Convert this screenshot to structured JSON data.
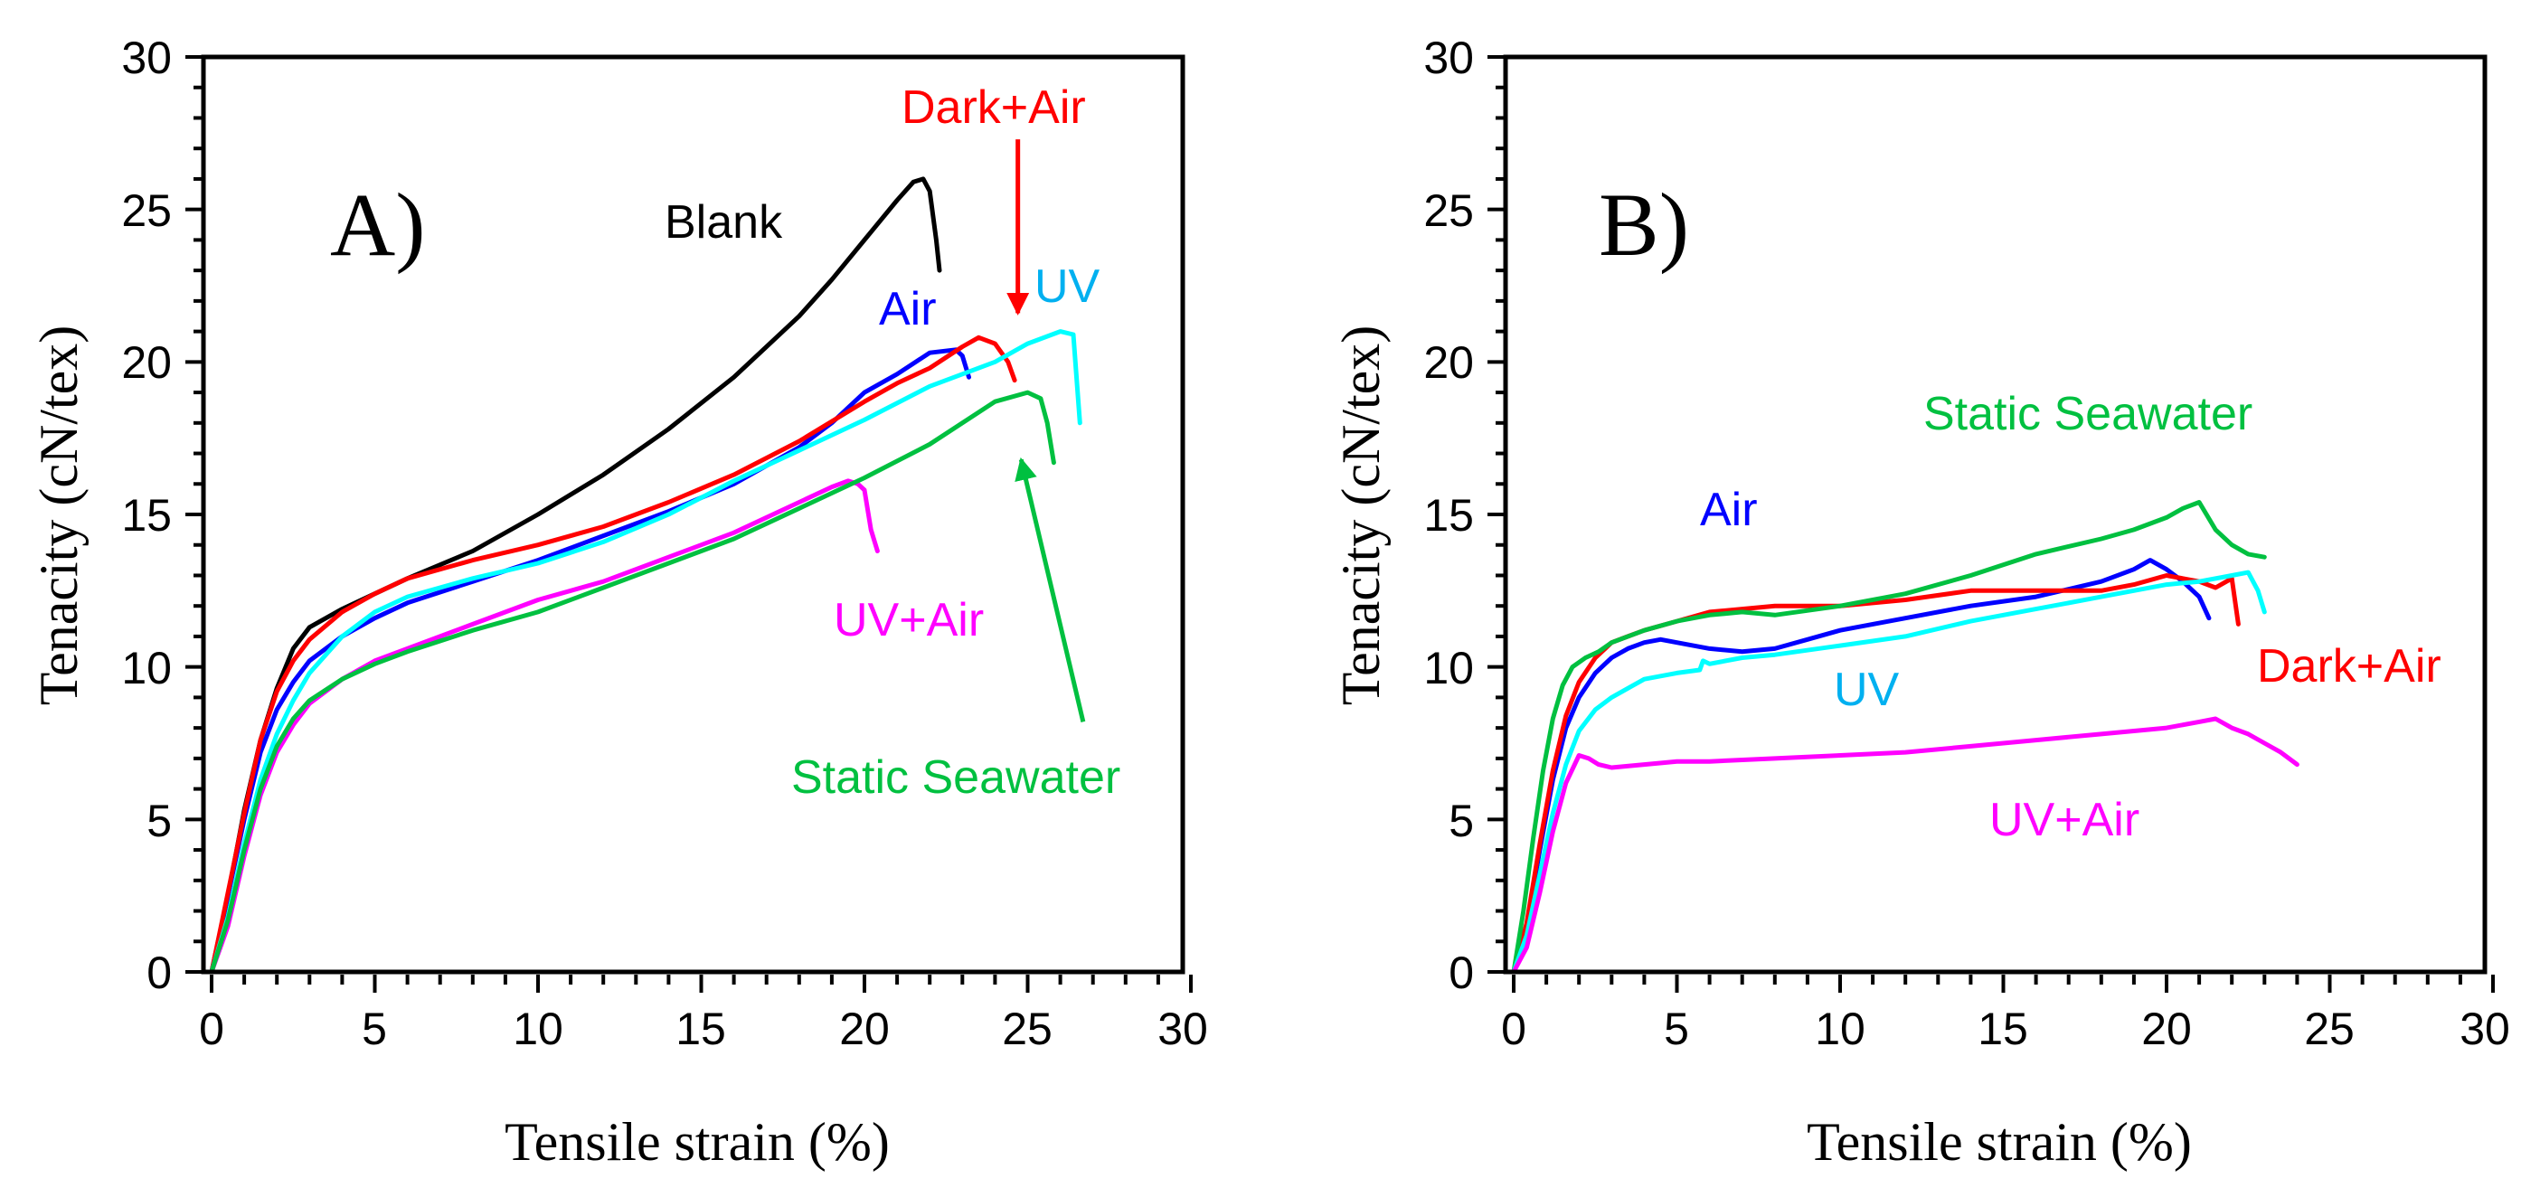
{
  "chart_data": [
    {
      "type": "line",
      "panel_label": "A)",
      "xlabel": "Tensile strain (%)",
      "ylabel": "Tenacity (cN/tex)",
      "xlim": [
        0,
        30
      ],
      "ylim": [
        0,
        30
      ],
      "xticks": [
        "0",
        "5",
        "10",
        "15",
        "20",
        "25",
        "30"
      ],
      "yticks": [
        "0",
        "5",
        "10",
        "15",
        "20",
        "25",
        "30"
      ],
      "series": [
        {
          "name": "Blank",
          "color": "#000000",
          "x": [
            0,
            0.5,
            1,
            1.5,
            2,
            2.5,
            3,
            4,
            5,
            6,
            8,
            10,
            12,
            14,
            16,
            18,
            19,
            20,
            21,
            21.5,
            21.8,
            22,
            22.2,
            22.3
          ],
          "y": [
            0,
            2.5,
            5.3,
            7.6,
            9.3,
            10.6,
            11.3,
            11.9,
            12.4,
            12.9,
            13.8,
            15.0,
            16.3,
            17.8,
            19.5,
            21.5,
            22.7,
            24.0,
            25.3,
            25.9,
            26.0,
            25.6,
            24.0,
            23.0
          ]
        },
        {
          "name": "Air",
          "color": "#0000ff",
          "x": [
            0,
            0.5,
            1,
            1.5,
            2,
            2.5,
            3,
            4,
            5,
            6,
            8,
            10,
            12,
            14,
            16,
            18,
            19,
            20,
            21,
            22,
            22.8,
            23,
            23.2
          ],
          "y": [
            0,
            2.5,
            5.0,
            7.2,
            8.6,
            9.5,
            10.2,
            11.0,
            11.6,
            12.1,
            12.8,
            13.5,
            14.3,
            15.1,
            16.0,
            17.2,
            18.0,
            19.0,
            19.6,
            20.3,
            20.4,
            20.2,
            19.5
          ]
        },
        {
          "name": "Dark+Air",
          "color": "#ff0000",
          "x": [
            0,
            0.5,
            1,
            1.5,
            2,
            2.5,
            3,
            4,
            5,
            6,
            8,
            10,
            12,
            14,
            16,
            18,
            20,
            21,
            22,
            23,
            23.5,
            24,
            24.4,
            24.6
          ],
          "y": [
            0,
            2.6,
            5.2,
            7.6,
            9.2,
            10.2,
            10.9,
            11.8,
            12.4,
            12.9,
            13.5,
            14.0,
            14.6,
            15.4,
            16.3,
            17.4,
            18.7,
            19.3,
            19.8,
            20.5,
            20.8,
            20.6,
            20.0,
            19.4
          ]
        },
        {
          "name": "UV",
          "color": "#00ffff",
          "x": [
            0,
            0.5,
            1,
            1.5,
            2,
            2.5,
            3,
            4,
            5,
            6,
            8,
            10,
            12,
            14,
            16,
            18,
            20,
            22,
            24,
            25,
            26,
            26.4,
            26.6
          ],
          "y": [
            0,
            1.8,
            4.2,
            6.3,
            7.8,
            8.9,
            9.8,
            11.0,
            11.8,
            12.3,
            12.9,
            13.4,
            14.1,
            15.0,
            16.1,
            17.1,
            18.1,
            19.2,
            20.0,
            20.6,
            21.0,
            20.9,
            18.0
          ]
        },
        {
          "name": "UV+Air",
          "color": "#ff00ff",
          "x": [
            0,
            0.5,
            1,
            1.5,
            2,
            2.5,
            3,
            4,
            5,
            6,
            8,
            10,
            12,
            14,
            16,
            18,
            19,
            19.5,
            19.8,
            20,
            20.2,
            20.4
          ],
          "y": [
            0,
            1.5,
            3.8,
            5.8,
            7.2,
            8.1,
            8.8,
            9.6,
            10.2,
            10.6,
            11.4,
            12.2,
            12.8,
            13.6,
            14.4,
            15.4,
            15.9,
            16.1,
            16.0,
            15.8,
            14.5,
            13.8
          ]
        },
        {
          "name": "Static Seawater",
          "color": "#00c040",
          "x": [
            0,
            0.5,
            1,
            1.5,
            2,
            2.5,
            3,
            4,
            5,
            6,
            8,
            10,
            12,
            14,
            16,
            18,
            20,
            22,
            24,
            25,
            25.4,
            25.6,
            25.8
          ],
          "y": [
            0,
            1.7,
            4.0,
            6.0,
            7.4,
            8.3,
            8.9,
            9.6,
            10.1,
            10.5,
            11.2,
            11.8,
            12.6,
            13.4,
            14.2,
            15.2,
            16.2,
            17.3,
            18.7,
            19.0,
            18.8,
            18.0,
            16.7
          ]
        }
      ],
      "annotations": [
        {
          "text": "Blank",
          "color": "#000000"
        },
        {
          "text": "Air",
          "color": "#0000ff"
        },
        {
          "text": "Dark+Air",
          "color": "#ff0000",
          "arrow_from": [
            24.7,
            27.3
          ],
          "arrow_to": [
            24.7,
            21.6
          ]
        },
        {
          "text": "UV",
          "color": "#00b0f0"
        },
        {
          "text": "UV+Air",
          "color": "#ff00ff"
        },
        {
          "text": "Static Seawater",
          "color": "#00c040",
          "arrow_from": [
            26.7,
            8.2
          ],
          "arrow_to": [
            24.8,
            16.8
          ]
        }
      ]
    },
    {
      "type": "line",
      "panel_label": "B)",
      "xlabel": "Tensile strain (%)",
      "ylabel": "Tenacity (cN/tex)",
      "xlim": [
        0,
        30
      ],
      "ylim": [
        0,
        30
      ],
      "xticks": [
        "0",
        "5",
        "10",
        "15",
        "20",
        "25",
        "30"
      ],
      "yticks": [
        "0",
        "5",
        "10",
        "15",
        "20",
        "25",
        "30"
      ],
      "series": [
        {
          "name": "Air",
          "color": "#0000ff",
          "x": [
            0,
            0.4,
            0.8,
            1.2,
            1.6,
            2,
            2.5,
            3,
            3.5,
            4,
            4.5,
            5,
            6,
            7,
            8,
            9,
            10,
            12,
            14,
            16,
            18,
            19,
            19.5,
            20,
            20.5,
            21,
            21.3
          ],
          "y": [
            0,
            1.5,
            4.0,
            6.3,
            8.0,
            9.0,
            9.8,
            10.3,
            10.6,
            10.8,
            10.9,
            10.8,
            10.6,
            10.5,
            10.6,
            10.9,
            11.2,
            11.6,
            12.0,
            12.3,
            12.8,
            13.2,
            13.5,
            13.2,
            12.8,
            12.3,
            11.6
          ]
        },
        {
          "name": "Dark+Air",
          "color": "#ff0000",
          "x": [
            0,
            0.4,
            0.8,
            1.2,
            1.6,
            2,
            2.5,
            3,
            3.5,
            4,
            5,
            6,
            7,
            8,
            10,
            12,
            14,
            16,
            18,
            19,
            20,
            21,
            21.5,
            22,
            22.2
          ],
          "y": [
            0,
            1.6,
            4.2,
            6.6,
            8.4,
            9.5,
            10.3,
            10.8,
            11.0,
            11.2,
            11.5,
            11.8,
            11.9,
            12.0,
            12.0,
            12.2,
            12.5,
            12.5,
            12.5,
            12.7,
            13.0,
            12.8,
            12.6,
            12.9,
            11.4
          ]
        },
        {
          "name": "Static Seawater",
          "color": "#00c040",
          "x": [
            0,
            0.3,
            0.6,
            0.9,
            1.2,
            1.5,
            1.8,
            2.2,
            2.6,
            3,
            4,
            5,
            6,
            7,
            8,
            10,
            12,
            14,
            16,
            18,
            19,
            20,
            20.5,
            21,
            21.5,
            22,
            22.5,
            23
          ],
          "y": [
            0,
            2.0,
            4.4,
            6.6,
            8.3,
            9.4,
            10.0,
            10.3,
            10.5,
            10.8,
            11.2,
            11.5,
            11.7,
            11.8,
            11.7,
            12.0,
            12.4,
            13.0,
            13.7,
            14.2,
            14.5,
            14.9,
            15.2,
            15.4,
            14.5,
            14.0,
            13.7,
            13.6
          ]
        },
        {
          "name": "UV",
          "color": "#00ffff",
          "x": [
            0,
            0.4,
            0.8,
            1.2,
            1.6,
            2,
            2.5,
            3,
            3.5,
            4,
            5,
            5.7,
            5.8,
            6,
            7,
            8,
            10,
            12,
            14,
            16,
            18,
            20,
            21,
            22,
            22.5,
            22.8,
            23
          ],
          "y": [
            0,
            1.2,
            3.2,
            5.2,
            6.8,
            7.9,
            8.6,
            9.0,
            9.3,
            9.6,
            9.8,
            9.9,
            10.2,
            10.1,
            10.3,
            10.4,
            10.7,
            11.0,
            11.5,
            11.9,
            12.3,
            12.7,
            12.8,
            13.0,
            13.1,
            12.5,
            11.8
          ]
        },
        {
          "name": "UV+Air",
          "color": "#ff00ff",
          "x": [
            0,
            0.4,
            0.8,
            1.2,
            1.6,
            2,
            2.3,
            2.6,
            3,
            4,
            5,
            6,
            8,
            10,
            12,
            14,
            16,
            18,
            20,
            21,
            21.5,
            22,
            22.5,
            23,
            23.5,
            24
          ],
          "y": [
            0,
            0.8,
            2.6,
            4.6,
            6.2,
            7.1,
            7.0,
            6.8,
            6.7,
            6.8,
            6.9,
            6.9,
            7.0,
            7.1,
            7.2,
            7.4,
            7.6,
            7.8,
            8.0,
            8.2,
            8.3,
            8.0,
            7.8,
            7.5,
            7.2,
            6.8
          ]
        }
      ],
      "annotations": [
        {
          "text": "Static Seawater",
          "color": "#00c040"
        },
        {
          "text": "Air",
          "color": "#0000ff"
        },
        {
          "text": "Dark+Air",
          "color": "#ff0000"
        },
        {
          "text": "UV",
          "color": "#00b0f0"
        },
        {
          "text": "UV+Air",
          "color": "#ff00ff"
        }
      ]
    }
  ]
}
